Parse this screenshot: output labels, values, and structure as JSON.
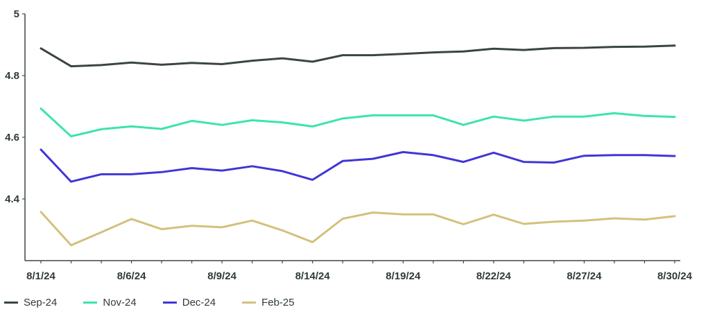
{
  "chart_data": {
    "type": "line",
    "title": "",
    "xlabel": "",
    "ylabel": "",
    "ylim": [
      4.2,
      5
    ],
    "yticks": [
      "4.4",
      "4.6",
      "4.8",
      "5"
    ],
    "x_tick_labels": [
      "8/1/24",
      "8/6/24",
      "8/9/24",
      "8/14/24",
      "8/19/24",
      "8/22/24",
      "8/27/24",
      "8/30/24"
    ],
    "x_tick_indices": [
      0,
      3,
      6,
      9,
      12,
      15,
      18,
      21
    ],
    "n_points": 22,
    "legend_position": "bottom-left",
    "series": [
      {
        "name": "Sep-24",
        "color": "#3a4540",
        "values": [
          4.888,
          4.83,
          4.834,
          4.842,
          4.835,
          4.841,
          4.837,
          4.848,
          4.856,
          4.845,
          4.866,
          4.866,
          4.87,
          4.875,
          4.878,
          4.887,
          4.883,
          4.889,
          4.89,
          4.893,
          4.894,
          4.897
        ]
      },
      {
        "name": "Nov-24",
        "color": "#3be3b0",
        "values": [
          4.693,
          4.603,
          4.626,
          4.635,
          4.627,
          4.653,
          4.64,
          4.655,
          4.648,
          4.635,
          4.661,
          4.671,
          4.671,
          4.671,
          4.64,
          4.667,
          4.654,
          4.667,
          4.667,
          4.678,
          4.669,
          4.666
        ]
      },
      {
        "name": "Dec-24",
        "color": "#4036d6",
        "values": [
          4.56,
          4.456,
          4.48,
          4.48,
          4.487,
          4.5,
          4.492,
          4.506,
          4.49,
          4.462,
          4.523,
          4.53,
          4.552,
          4.542,
          4.52,
          4.55,
          4.52,
          4.518,
          4.54,
          4.542,
          4.542,
          4.539
        ]
      },
      {
        "name": "Feb-25",
        "color": "#d4c07c",
        "values": [
          4.358,
          4.25,
          4.292,
          4.335,
          4.302,
          4.313,
          4.308,
          4.33,
          4.298,
          4.26,
          4.336,
          4.356,
          4.35,
          4.35,
          4.318,
          4.349,
          4.319,
          4.326,
          4.33,
          4.337,
          4.333,
          4.344
        ]
      }
    ]
  }
}
